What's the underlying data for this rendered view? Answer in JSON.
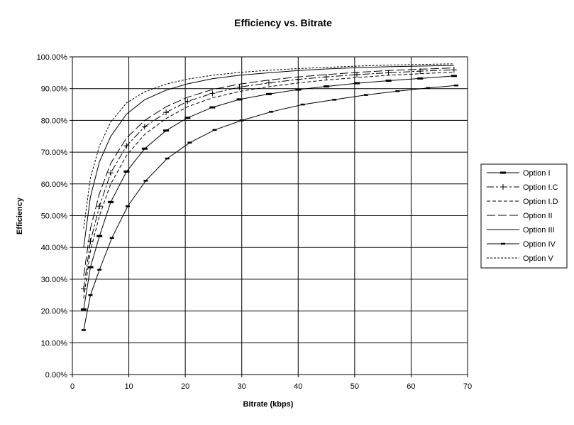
{
  "chart_data": {
    "type": "line",
    "title": "Efficiency vs. Bitrate",
    "xlabel": "Bitrate (kbps)",
    "ylabel": "Efficiency",
    "xlim": [
      0,
      70
    ],
    "ylim": [
      0,
      1
    ],
    "x_ticks": [
      "0",
      "10",
      "20",
      "30",
      "40",
      "50",
      "60",
      "70"
    ],
    "y_ticks": [
      "0.00%",
      "10.00%",
      "20.00%",
      "30.00%",
      "40.00%",
      "50.00%",
      "60.00%",
      "70.00%",
      "80.00%",
      "90.00%",
      "100.00%"
    ],
    "grid": "horizontal and vertical major gridlines",
    "legend_position": "right",
    "series": [
      {
        "name": "Option  I",
        "style": "solid",
        "marker": "dash",
        "x": [
          2,
          3.2,
          4.8,
          6.8,
          9.6,
          12.8,
          16.6,
          20.4,
          24.8,
          29.6,
          34.8,
          40,
          45,
          50.4,
          56,
          61.6,
          67.6
        ],
        "y": [
          0.205,
          0.338,
          0.436,
          0.543,
          0.639,
          0.711,
          0.768,
          0.808,
          0.841,
          0.866,
          0.883,
          0.897,
          0.907,
          0.917,
          0.925,
          0.932,
          0.94
        ]
      },
      {
        "name": "Option I.C",
        "style": "long-short dash",
        "marker": "plus",
        "x": [
          2,
          3.2,
          4.8,
          6.8,
          9.6,
          12.8,
          16.6,
          20.4,
          24.8,
          29.6,
          34.8,
          40,
          45,
          50.4,
          56,
          61.6,
          67.6
        ],
        "y": [
          0.27,
          0.42,
          0.53,
          0.635,
          0.72,
          0.78,
          0.825,
          0.86,
          0.885,
          0.905,
          0.918,
          0.929,
          0.937,
          0.944,
          0.95,
          0.955,
          0.959
        ]
      },
      {
        "name": "Option I.D",
        "style": "medium dash",
        "marker": "none",
        "x": [
          2,
          3.2,
          4.8,
          6.8,
          9.6,
          12.8,
          16.6,
          20.4,
          24.8,
          29.6,
          34.8,
          40,
          45,
          50.4,
          56,
          61.6,
          67.6
        ],
        "y": [
          0.24,
          0.39,
          0.5,
          0.6,
          0.69,
          0.756,
          0.806,
          0.843,
          0.871,
          0.891,
          0.906,
          0.918,
          0.927,
          0.935,
          0.942,
          0.947,
          0.952
        ]
      },
      {
        "name": "Option II",
        "style": "long dash",
        "marker": "none",
        "x": [
          2,
          3.2,
          4.8,
          6.8,
          9.6,
          12.8,
          16.6,
          20.4,
          24.8,
          29.6,
          34.8,
          40,
          45,
          50.4,
          56,
          61.6,
          67.6
        ],
        "y": [
          0.31,
          0.46,
          0.57,
          0.665,
          0.745,
          0.8,
          0.843,
          0.873,
          0.897,
          0.914,
          0.927,
          0.937,
          0.944,
          0.951,
          0.957,
          0.961,
          0.965
        ]
      },
      {
        "name": "Option III",
        "style": "solid",
        "marker": "none",
        "x": [
          2,
          3.2,
          4.8,
          6.8,
          9.6,
          12.8,
          16.6,
          20.4,
          24.8,
          29.6,
          34.8,
          40,
          45,
          50.4,
          56,
          61.6,
          67.6
        ],
        "y": [
          0.4,
          0.56,
          0.67,
          0.75,
          0.82,
          0.865,
          0.895,
          0.915,
          0.931,
          0.942,
          0.95,
          0.957,
          0.962,
          0.966,
          0.969,
          0.971,
          0.973
        ]
      },
      {
        "name": "Option IV",
        "style": "solid",
        "marker": "small dash",
        "x": [
          2,
          3.2,
          4.8,
          7,
          9.8,
          13,
          16.8,
          20.8,
          25.2,
          30,
          35.2,
          40.8,
          46.4,
          52,
          57.6,
          63,
          68
        ],
        "y": [
          0.14,
          0.25,
          0.33,
          0.43,
          0.53,
          0.61,
          0.68,
          0.73,
          0.77,
          0.8,
          0.827,
          0.85,
          0.865,
          0.88,
          0.892,
          0.902,
          0.91
        ]
      },
      {
        "name": "Option V",
        "style": "short dash",
        "marker": "none",
        "x": [
          2,
          3.2,
          4.8,
          6.8,
          9.6,
          12.8,
          16.6,
          20.4,
          24.8,
          29.6,
          34.8,
          40,
          45,
          50.4,
          56,
          61.6,
          67.6
        ],
        "y": [
          0.46,
          0.62,
          0.72,
          0.795,
          0.855,
          0.89,
          0.914,
          0.93,
          0.942,
          0.951,
          0.958,
          0.963,
          0.967,
          0.971,
          0.974,
          0.976,
          0.978
        ]
      }
    ]
  }
}
